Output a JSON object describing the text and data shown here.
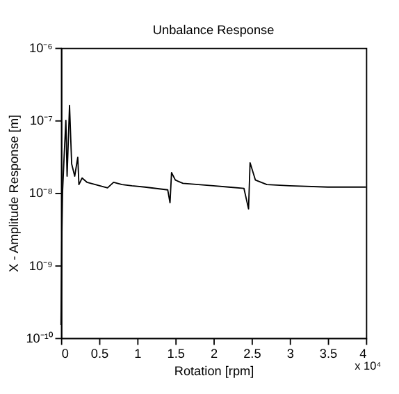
{
  "chart_data": {
    "type": "line",
    "title": "Unbalance Response",
    "xlabel": "Rotation  [rpm]",
    "ylabel": "X - Amplitude Response [m]",
    "log": "y",
    "grid": false,
    "legend": false,
    "marker": "none",
    "line_style": "solid",
    "xlim": [
      0,
      4
    ],
    "ylim": [
      1e-10,
      1e-06
    ],
    "xticks": [
      0,
      0.5,
      1,
      1.5,
      2,
      2.5,
      3,
      3.5,
      4
    ],
    "yticks": [
      {
        "value": 1e-10,
        "label": "10⁻¹⁰"
      },
      {
        "value": 1e-09,
        "label": "10⁻⁹"
      },
      {
        "value": 1e-08,
        "label": "10⁻⁸"
      },
      {
        "value": 1e-07,
        "label": "10⁻⁷"
      },
      {
        "value": 1e-06,
        "label": "10⁻⁶"
      }
    ],
    "annotations": [
      "x 10⁴"
    ],
    "series": [
      {
        "color": "#000000",
        "x": [
          0,
          0.01,
          0.02,
          0.04,
          0.064,
          0.08,
          0.112,
          0.14,
          0.18,
          0.22,
          0.235,
          0.277,
          0.34,
          0.45,
          0.61,
          0.69,
          0.8,
          0.93,
          1.1,
          1.4,
          1.43,
          1.45,
          1.5,
          1.6,
          1.8,
          2.0,
          2.2,
          2.4,
          2.46,
          2.48,
          2.55,
          2.7,
          3.0,
          3.5,
          4.0
        ],
        "values": [
          1.5e-10,
          2e-09,
          1e-08,
          3e-08,
          1e-07,
          1.7e-08,
          1.6e-07,
          2.5e-08,
          1.7e-08,
          3.1e-08,
          1.3e-08,
          1.6e-08,
          1.4e-08,
          1.3e-08,
          1.17e-08,
          1.4e-08,
          1.3e-08,
          1.25e-08,
          1.2e-08,
          1.1e-08,
          7.3e-09,
          1.9e-08,
          1.5e-08,
          1.35e-08,
          1.3e-08,
          1.25e-08,
          1.2e-08,
          1.15e-08,
          6e-09,
          2.6e-08,
          1.5e-08,
          1.3e-08,
          1.25e-08,
          1.2e-08,
          1.2e-08
        ]
      }
    ]
  }
}
